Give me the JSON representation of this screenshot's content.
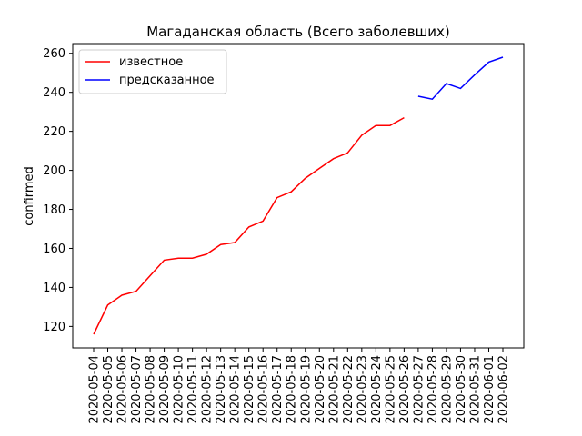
{
  "chart_data": {
    "type": "line",
    "title": "Магаданская область (Всего заболевших)",
    "xlabel": "",
    "ylabel": "confirmed",
    "ylim": [
      109,
      265
    ],
    "yticks": [
      120,
      140,
      160,
      180,
      200,
      220,
      240,
      260
    ],
    "x": [
      "2020-05-04",
      "2020-05-05",
      "2020-05-06",
      "2020-05-07",
      "2020-05-08",
      "2020-05-09",
      "2020-05-10",
      "2020-05-11",
      "2020-05-12",
      "2020-05-13",
      "2020-05-14",
      "2020-05-15",
      "2020-05-16",
      "2020-05-17",
      "2020-05-18",
      "2020-05-19",
      "2020-05-20",
      "2020-05-21",
      "2020-05-22",
      "2020-05-23",
      "2020-05-24",
      "2020-05-25",
      "2020-05-26",
      "2020-05-27",
      "2020-05-28",
      "2020-05-29",
      "2020-05-30",
      "2020-05-31",
      "2020-06-01",
      "2020-06-02"
    ],
    "series": [
      {
        "name": "известное",
        "color": "#ff0000",
        "x": [
          "2020-05-04",
          "2020-05-05",
          "2020-05-06",
          "2020-05-07",
          "2020-05-08",
          "2020-05-09",
          "2020-05-10",
          "2020-05-11",
          "2020-05-12",
          "2020-05-13",
          "2020-05-14",
          "2020-05-15",
          "2020-05-16",
          "2020-05-17",
          "2020-05-18",
          "2020-05-19",
          "2020-05-20",
          "2020-05-21",
          "2020-05-22",
          "2020-05-23",
          "2020-05-24",
          "2020-05-25",
          "2020-05-26"
        ],
        "values": [
          116,
          131,
          136,
          138,
          146,
          154,
          155,
          155,
          157,
          162,
          163,
          171,
          174,
          186,
          189,
          196,
          201,
          206,
          209,
          218,
          223,
          223,
          227
        ]
      },
      {
        "name": "предсказанное",
        "color": "#0000ff",
        "x": [
          "2020-05-27",
          "2020-05-28",
          "2020-05-29",
          "2020-05-30",
          "2020-05-31",
          "2020-06-01",
          "2020-06-02"
        ],
        "values": [
          238,
          236.5,
          244.5,
          242,
          249,
          255.5,
          258
        ]
      }
    ],
    "grid": false,
    "legend_placement": "top-left"
  }
}
